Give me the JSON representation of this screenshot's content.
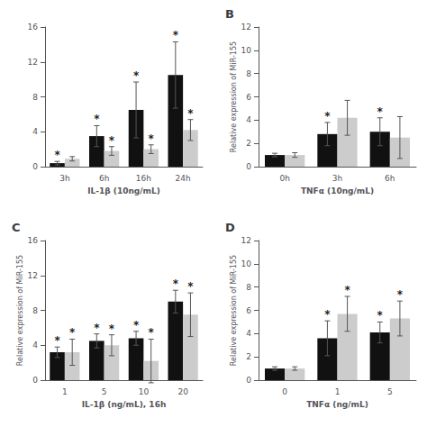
{
  "chart_data": [
    {
      "type": "bar",
      "xlabel": "IL-1β (10ng/mL)",
      "categories": [
        "3h",
        "6h",
        "16h",
        "24h"
      ],
      "series": [
        {
          "color": "#111111",
          "values": [
            0.4,
            3.5,
            6.5,
            10.5
          ],
          "errors": [
            0.2,
            1.2,
            3.2,
            3.8
          ],
          "annotations": [
            "*",
            "*",
            "*",
            "*"
          ]
        },
        {
          "color": "#cccccc",
          "values": [
            0.9,
            1.8,
            2.0,
            4.2
          ],
          "errors": [
            0.25,
            0.5,
            0.5,
            1.2
          ],
          "annotations": [
            null,
            "*",
            "*",
            "*"
          ]
        }
      ],
      "ylim": [
        0,
        16
      ],
      "yticks": [
        0,
        4,
        8,
        12,
        16
      ],
      "grid": false
    },
    {
      "type": "bar",
      "title": "B",
      "xlabel": "TNFα (10ng/mL)",
      "ylabel": "Relative expression of MiR-155",
      "categories": [
        "0h",
        "3h",
        "6h"
      ],
      "series": [
        {
          "color": "#111111",
          "values": [
            1.0,
            2.8,
            3.0
          ],
          "errors": [
            0.15,
            1.0,
            1.2
          ],
          "annotations": [
            null,
            "*",
            "*"
          ]
        },
        {
          "color": "#cccccc",
          "values": [
            1.0,
            4.2,
            2.5
          ],
          "errors": [
            0.2,
            1.5,
            1.8
          ],
          "annotations": [
            null,
            null,
            null
          ]
        }
      ],
      "ylim": [
        0,
        12
      ],
      "yticks": [
        0,
        2,
        4,
        6,
        8,
        10,
        12
      ],
      "grid": false
    },
    {
      "type": "bar",
      "title": "C",
      "xlabel": "IL-1β (ng/mL), 16h",
      "ylabel": "Relative expression of MiR-155",
      "categories": [
        "1",
        "5",
        "10",
        "20"
      ],
      "series": [
        {
          "color": "#111111",
          "values": [
            3.2,
            4.5,
            4.8,
            9.0
          ],
          "errors": [
            0.6,
            0.8,
            0.8,
            1.3
          ],
          "annotations": [
            "*",
            "*",
            "*",
            "*"
          ]
        },
        {
          "color": "#cccccc",
          "values": [
            3.2,
            4.0,
            2.2,
            7.5
          ],
          "errors": [
            1.5,
            1.2,
            2.5,
            2.5
          ],
          "annotations": [
            "*",
            "*",
            "*",
            "*"
          ]
        }
      ],
      "ylim": [
        0,
        16
      ],
      "yticks": [
        0,
        4,
        8,
        12,
        16
      ],
      "grid": false
    },
    {
      "type": "bar",
      "title": "D",
      "xlabel": "TNFα (ng/mL)",
      "ylabel": "Relative expression of MiR-155",
      "categories": [
        "0",
        "1",
        "5"
      ],
      "series": [
        {
          "color": "#111111",
          "values": [
            1.0,
            3.6,
            4.1
          ],
          "errors": [
            0.15,
            1.5,
            0.9
          ],
          "annotations": [
            null,
            "*",
            "*"
          ]
        },
        {
          "color": "#cccccc",
          "values": [
            1.0,
            5.7,
            5.3
          ],
          "errors": [
            0.15,
            1.5,
            1.5
          ],
          "annotations": [
            null,
            "*",
            "*"
          ]
        }
      ],
      "ylim": [
        0,
        12
      ],
      "yticks": [
        0,
        2,
        4,
        6,
        8,
        10,
        12
      ],
      "grid": false
    }
  ]
}
